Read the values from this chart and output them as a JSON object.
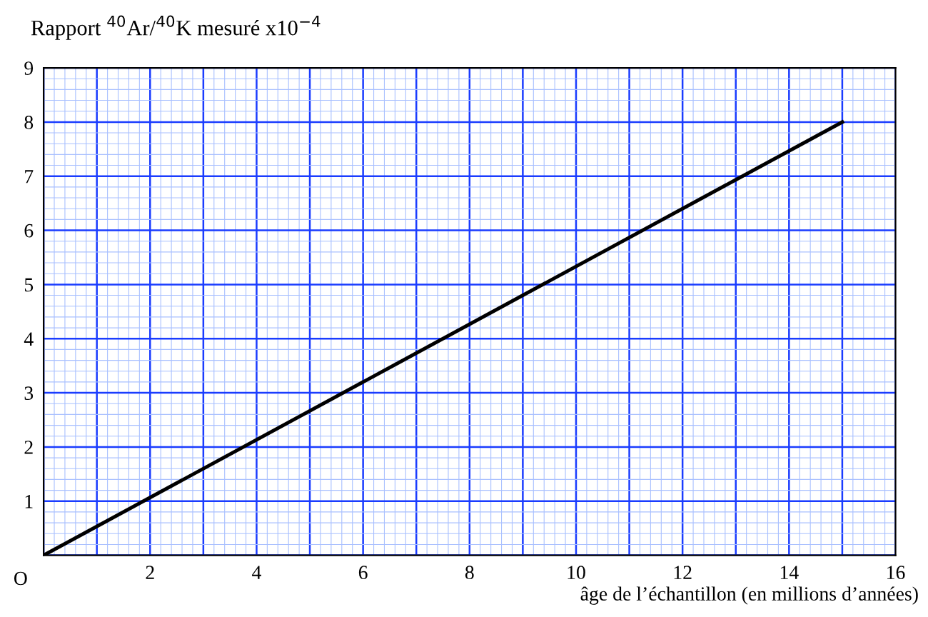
{
  "chart_data": {
    "type": "line",
    "title": "Rapport $^{40}$Ar/$^{40}$K mesuré x10$^{−4}$",
    "xlabel": "âge de l’échantillon (en millions d’années)",
    "x": [
      0,
      15
    ],
    "series": [
      {
        "color": "#000000",
        "values": [
          0,
          8
        ]
      }
    ],
    "xlim": [
      0,
      16
    ],
    "ylim": [
      0,
      9
    ],
    "xticks": [
      {
        "value": 0,
        "label": null
      },
      {
        "value": 0.2,
        "label": null
      },
      {
        "value": 0.4,
        "label": null
      },
      {
        "value": 0.6,
        "label": null
      },
      {
        "value": 0.8,
        "label": null
      },
      {
        "value": 1,
        "label": null
      },
      {
        "value": 1.2,
        "label": null
      },
      {
        "value": 1.4,
        "label": null
      },
      {
        "value": 1.6,
        "label": null
      },
      {
        "value": 1.8,
        "label": null
      },
      2,
      {
        "value": 2.2,
        "label": null
      },
      {
        "value": 2.4,
        "label": null
      },
      {
        "value": 2.6,
        "label": null
      },
      {
        "value": 2.8,
        "label": null
      },
      {
        "value": 3,
        "label": null
      },
      {
        "value": 3.2,
        "label": null
      },
      {
        "value": 3.4,
        "label": null
      },
      {
        "value": 3.6,
        "label": null
      },
      {
        "value": 3.8,
        "label": null
      },
      4,
      {
        "value": 4.2,
        "label": null
      },
      {
        "value": 4.4,
        "label": null
      },
      {
        "value": 4.6,
        "label": null
      },
      {
        "value": 4.8,
        "label": null
      },
      {
        "value": 5,
        "label": null
      },
      {
        "value": 5.2,
        "label": null
      },
      {
        "value": 5.4,
        "label": null
      },
      {
        "value": 5.6,
        "label": null
      },
      {
        "value": 5.8,
        "label": null
      },
      6,
      {
        "value": 6.2,
        "label": null
      },
      {
        "value": 6.4,
        "label": null
      },
      {
        "value": 6.6,
        "label": null
      },
      {
        "value": 6.8,
        "label": null
      },
      {
        "value": 7,
        "label": null
      },
      {
        "value": 7.2,
        "label": null
      },
      {
        "value": 7.4,
        "label": null
      },
      {
        "value": 7.6,
        "label": null
      },
      {
        "value": 7.8,
        "label": null
      },
      8,
      {
        "value": 8.2,
        "label": null
      },
      {
        "value": 8.4,
        "label": null
      },
      {
        "value": 8.6,
        "label": null
      },
      {
        "value": 8.8,
        "label": null
      },
      {
        "value": 9,
        "label": null
      },
      {
        "value": 9.2,
        "label": null
      },
      {
        "value": 9.4,
        "label": null
      },
      {
        "value": 9.6,
        "label": null
      },
      {
        "value": 9.8,
        "label": null
      },
      10,
      {
        "value": 10.2,
        "label": null
      },
      {
        "value": 10.4,
        "label": null
      },
      {
        "value": 10.6,
        "label": null
      },
      {
        "value": 10.8,
        "label": null
      },
      {
        "value": 11,
        "label": null
      },
      {
        "value": 11.2,
        "label": null
      },
      {
        "value": 11.4,
        "label": null
      },
      {
        "value": 11.6,
        "label": null
      },
      {
        "value": 11.8,
        "label": null
      },
      12,
      {
        "value": 12.2,
        "label": null
      },
      {
        "value": 12.4,
        "label": null
      },
      {
        "value": 12.6,
        "label": null
      },
      {
        "value": 12.8,
        "label": null
      },
      {
        "value": 13,
        "label": null
      },
      {
        "value": 13.2,
        "label": null
      },
      {
        "value": 13.4,
        "label": null
      },
      {
        "value": 13.6,
        "label": null
      },
      {
        "value": 13.8,
        "label": null
      },
      14,
      {
        "value": 14.2,
        "label": null
      },
      {
        "value": 14.4,
        "label": null
      },
      {
        "value": 14.6,
        "label": null
      },
      {
        "value": 14.8,
        "label": null
      },
      {
        "value": 15,
        "label": null
      },
      {
        "value": 15.2,
        "label": null
      },
      {
        "value": 15.4,
        "label": null
      },
      {
        "value": 15.6,
        "label": null
      },
      {
        "value": 15.8,
        "label": null
      },
      16
    ],
    "yticks": [
      {
        "value": 0,
        "label": null
      },
      {
        "value": 0.2,
        "label": null
      },
      {
        "value": 0.4,
        "label": null
      },
      {
        "value": 0.6,
        "label": null
      },
      {
        "value": 0.8,
        "label": null
      },
      1,
      {
        "value": 1.2,
        "label": null
      },
      {
        "value": 1.4,
        "label": null
      },
      {
        "value": 1.6,
        "label": null
      },
      {
        "value": 1.8,
        "label": null
      },
      2,
      {
        "value": 2.2,
        "label": null
      },
      {
        "value": 2.4,
        "label": null
      },
      {
        "value": 2.6,
        "label": null
      },
      {
        "value": 2.8,
        "label": null
      },
      3,
      {
        "value": 3.2,
        "label": null
      },
      {
        "value": 3.4,
        "label": null
      },
      {
        "value": 3.6,
        "label": null
      },
      {
        "value": 3.8,
        "label": null
      },
      4,
      {
        "value": 4.2,
        "label": null
      },
      {
        "value": 4.4,
        "label": null
      },
      {
        "value": 4.6,
        "label": null
      },
      {
        "value": 4.8,
        "label": null
      },
      5,
      {
        "value": 5.2,
        "label": null
      },
      {
        "value": 5.4,
        "label": null
      },
      {
        "value": 5.6,
        "label": null
      },
      {
        "value": 5.8,
        "label": null
      },
      6,
      {
        "value": 6.2,
        "label": null
      },
      {
        "value": 6.4,
        "label": null
      },
      {
        "value": 6.6,
        "label": null
      },
      {
        "value": 6.8,
        "label": null
      },
      7,
      {
        "value": 7.2,
        "label": null
      },
      {
        "value": 7.4,
        "label": null
      },
      {
        "value": 7.6,
        "label": null
      },
      {
        "value": 7.8,
        "label": null
      },
      8,
      {
        "value": 8.2,
        "label": null
      },
      {
        "value": 8.4,
        "label": null
      },
      {
        "value": 8.6,
        "label": null
      },
      {
        "value": 8.8,
        "label": null
      },
      9
    ],
    "grid": true,
    "marker": "none",
    "line_style": "solid",
    "annotations": [
      "O"
    ]
  }
}
